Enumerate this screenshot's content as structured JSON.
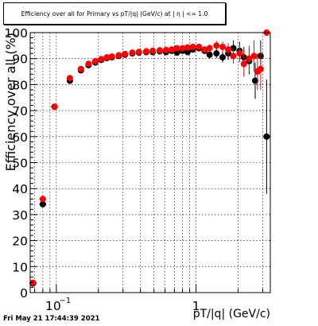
{
  "chart_data": {
    "type": "scatter",
    "title": "Efficiency over all for Primary vs pT/|q| (GeV/c) at | η | <= 1.0",
    "xlabel": "pT/|q| (GeV/c)",
    "ylabel": "Efficiency over all (%)",
    "xscale": "log",
    "xlim": [
      0.065,
      3.4
    ],
    "ylim": [
      0,
      100
    ],
    "yticks": [
      0,
      10,
      20,
      30,
      40,
      50,
      60,
      70,
      80,
      90,
      100
    ],
    "xticks": [
      {
        "value": 0.1,
        "base": "10",
        "exp": "−1"
      },
      {
        "value": 1,
        "base": "1",
        "exp": ""
      }
    ],
    "grid": true,
    "timestamp": "Fri May 21 17:44:39 2021",
    "colors": {
      "series_black": "#000000",
      "series_red": "#ff0000"
    },
    "series": [
      {
        "color": "#000000",
        "points": [
          {
            "x": 0.068,
            "y": 3.5,
            "err": 0.5
          },
          {
            "x": 0.08,
            "y": 34,
            "err": 1
          },
          {
            "x": 0.097,
            "y": 71.5,
            "err": 0.7
          },
          {
            "x": 0.125,
            "y": 81.5,
            "err": 0.8
          },
          {
            "x": 0.15,
            "y": 85.5,
            "err": 0.6
          },
          {
            "x": 0.17,
            "y": 87.5,
            "err": 0.5
          },
          {
            "x": 0.19,
            "y": 88.5,
            "err": 0.5
          },
          {
            "x": 0.21,
            "y": 89.5,
            "err": 0.4
          },
          {
            "x": 0.23,
            "y": 90.2,
            "err": 0.4
          },
          {
            "x": 0.25,
            "y": 90.5,
            "err": 0.4
          },
          {
            "x": 0.28,
            "y": 91,
            "err": 0.4
          },
          {
            "x": 0.31,
            "y": 91.5,
            "err": 0.4
          },
          {
            "x": 0.35,
            "y": 92,
            "err": 0.4
          },
          {
            "x": 0.39,
            "y": 92.3,
            "err": 0.4
          },
          {
            "x": 0.44,
            "y": 92.5,
            "err": 0.4
          },
          {
            "x": 0.49,
            "y": 92.5,
            "err": 0.4
          },
          {
            "x": 0.55,
            "y": 92.8,
            "err": 0.5
          },
          {
            "x": 0.61,
            "y": 92.5,
            "err": 0.5
          },
          {
            "x": 0.67,
            "y": 93,
            "err": 0.5
          },
          {
            "x": 0.73,
            "y": 92.3,
            "err": 0.6
          },
          {
            "x": 0.8,
            "y": 93,
            "err": 0.6
          },
          {
            "x": 0.87,
            "y": 92.5,
            "err": 0.7
          },
          {
            "x": 0.95,
            "y": 93.5,
            "err": 0.8
          },
          {
            "x": 1.05,
            "y": 94,
            "err": 1
          },
          {
            "x": 1.15,
            "y": 93,
            "err": 1.2
          },
          {
            "x": 1.25,
            "y": 91.5,
            "err": 1.5
          },
          {
            "x": 1.4,
            "y": 92,
            "err": 1.8
          },
          {
            "x": 1.55,
            "y": 90.5,
            "err": 2
          },
          {
            "x": 1.7,
            "y": 92,
            "err": 2.5
          },
          {
            "x": 1.85,
            "y": 94,
            "err": 3
          },
          {
            "x": 2.05,
            "y": 93,
            "err": 3.5
          },
          {
            "x": 2.2,
            "y": 90.5,
            "err": 4
          },
          {
            "x": 2.4,
            "y": 89,
            "err": 5
          },
          {
            "x": 2.65,
            "y": 81.5,
            "err": 7
          },
          {
            "x": 2.9,
            "y": 91,
            "err": 6
          },
          {
            "x": 3.2,
            "y": 60,
            "err": 22
          }
        ]
      },
      {
        "color": "#ff0000",
        "points": [
          {
            "x": 0.068,
            "y": 3.8,
            "err": 0.5
          },
          {
            "x": 0.08,
            "y": 36,
            "err": 1
          },
          {
            "x": 0.097,
            "y": 71.5,
            "err": 0.7
          },
          {
            "x": 0.125,
            "y": 82.5,
            "err": 0.8
          },
          {
            "x": 0.15,
            "y": 86,
            "err": 0.6
          },
          {
            "x": 0.17,
            "y": 88,
            "err": 0.5
          },
          {
            "x": 0.19,
            "y": 89,
            "err": 0.5
          },
          {
            "x": 0.21,
            "y": 89.8,
            "err": 0.4
          },
          {
            "x": 0.23,
            "y": 90.5,
            "err": 0.4
          },
          {
            "x": 0.25,
            "y": 90.8,
            "err": 0.4
          },
          {
            "x": 0.28,
            "y": 91.3,
            "err": 0.4
          },
          {
            "x": 0.31,
            "y": 91.8,
            "err": 0.4
          },
          {
            "x": 0.35,
            "y": 92.3,
            "err": 0.4
          },
          {
            "x": 0.39,
            "y": 92.6,
            "err": 0.4
          },
          {
            "x": 0.44,
            "y": 92.8,
            "err": 0.4
          },
          {
            "x": 0.49,
            "y": 93,
            "err": 0.4
          },
          {
            "x": 0.55,
            "y": 93.2,
            "err": 0.5
          },
          {
            "x": 0.61,
            "y": 93.3,
            "err": 0.5
          },
          {
            "x": 0.67,
            "y": 93.5,
            "err": 0.5
          },
          {
            "x": 0.73,
            "y": 94,
            "err": 0.6
          },
          {
            "x": 0.8,
            "y": 94,
            "err": 0.6
          },
          {
            "x": 0.87,
            "y": 94.3,
            "err": 0.7
          },
          {
            "x": 0.95,
            "y": 94.5,
            "err": 0.8
          },
          {
            "x": 1.05,
            "y": 94.5,
            "err": 1
          },
          {
            "x": 1.15,
            "y": 93.5,
            "err": 1.2
          },
          {
            "x": 1.25,
            "y": 94,
            "err": 1.5
          },
          {
            "x": 1.4,
            "y": 95,
            "err": 1.8
          },
          {
            "x": 1.55,
            "y": 94.5,
            "err": 2
          },
          {
            "x": 1.7,
            "y": 93.5,
            "err": 2.5
          },
          {
            "x": 1.85,
            "y": 91,
            "err": 3
          },
          {
            "x": 2.05,
            "y": 92,
            "err": 3.5
          },
          {
            "x": 2.2,
            "y": 88,
            "err": 5
          },
          {
            "x": 2.4,
            "y": 90,
            "err": 5
          },
          {
            "x": 2.6,
            "y": 91,
            "err": 6
          },
          {
            "x": 2.75,
            "y": 85,
            "err": 7
          },
          {
            "x": 2.9,
            "y": 86,
            "err": 8
          },
          {
            "x": 3.2,
            "y": 100,
            "err": 0
          }
        ]
      }
    ]
  }
}
